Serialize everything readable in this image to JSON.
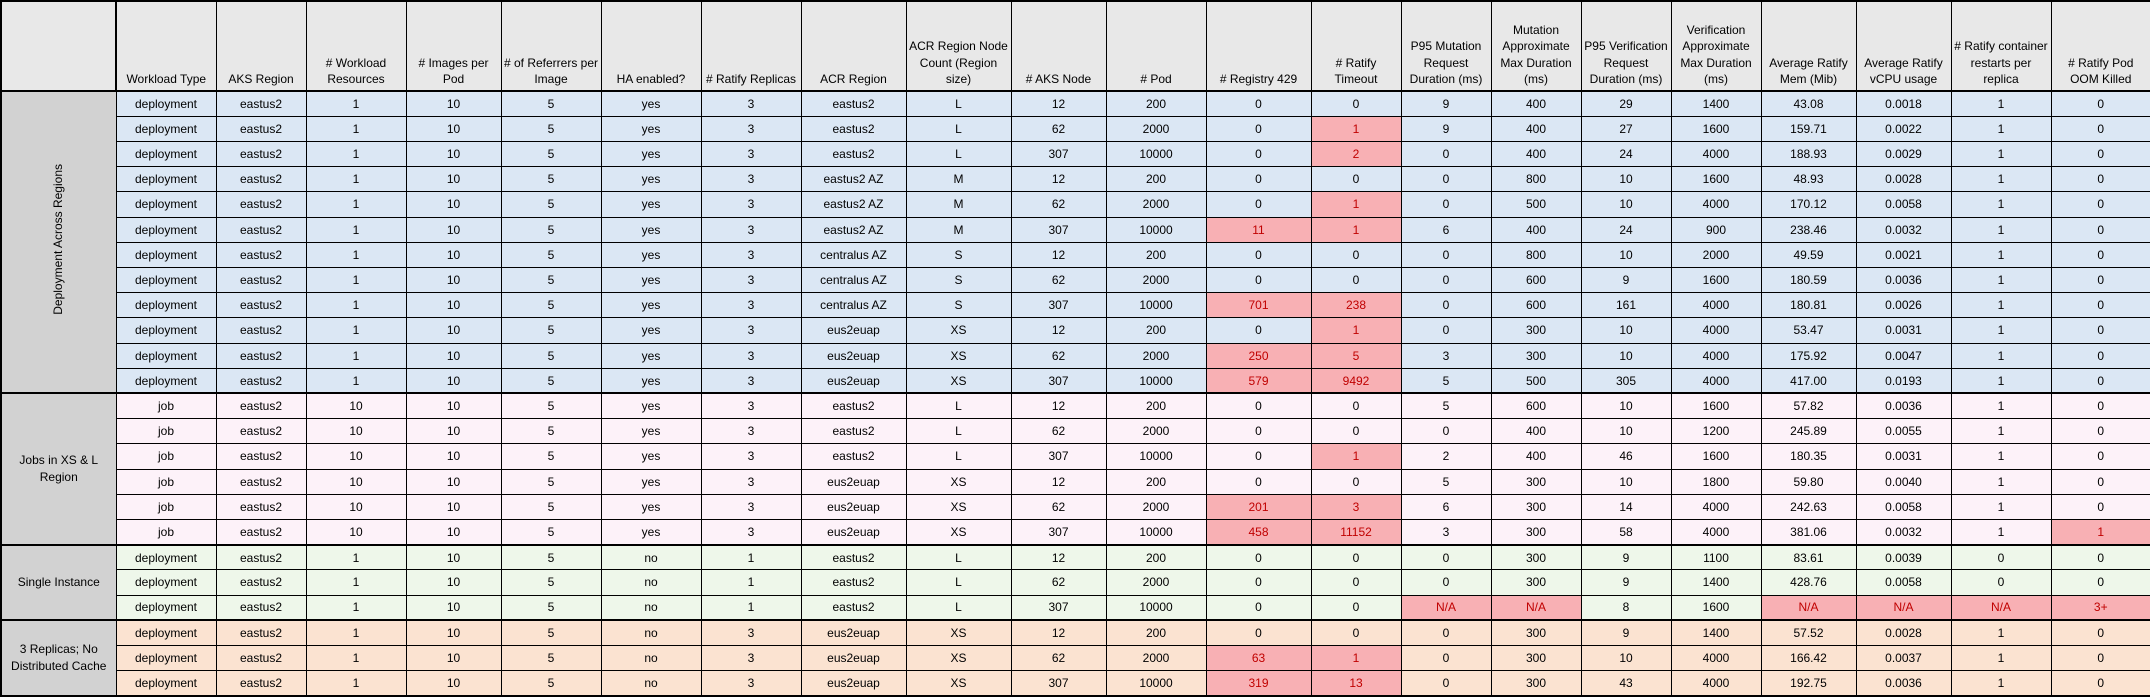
{
  "table": {
    "corner_label": "",
    "columns": [
      "Workload Type",
      "AKS Region",
      "# Workload Resources",
      "# Images per Pod",
      "# of Referrers per Image",
      "HA enabled?",
      "# Ratify Replicas",
      "ACR Region",
      "ACR Region Node Count (Region size)",
      "# AKS Node",
      "# Pod",
      "# Registry 429",
      "# Ratify Timeout",
      "P95 Mutation Request Duration (ms)",
      "Mutation Approximate Max Duration (ms)",
      "P95 Verification Request Duration (ms)",
      "Verification Approximate Max Duration (ms)",
      "Average Ratify Mem (Mib)",
      "Average Ratify vCPU usage",
      "# Ratify container restarts per replica",
      "# Ratify Pod OOM Killed"
    ],
    "colors": {
      "header_bg": "#e8e8e8",
      "group_label_bg": "#d2d2d2",
      "bad_cell_bg": "#f8b0b4",
      "bad_cell_text": "#c00000",
      "border": "#000000"
    },
    "groups": [
      {
        "label": "Deployment Across Regions",
        "label_rotated": true,
        "row_bg": "#dbe7f4",
        "rows": [
          [
            "deployment",
            "eastus2",
            "1",
            "10",
            "5",
            "yes",
            "3",
            "eastus2",
            "L",
            "12",
            "200",
            "0",
            "0",
            "9",
            "400",
            "29",
            "1400",
            "43.08",
            "0.0018",
            "1",
            "0"
          ],
          [
            "deployment",
            "eastus2",
            "1",
            "10",
            "5",
            "yes",
            "3",
            "eastus2",
            "L",
            "62",
            "2000",
            "0",
            "1",
            "9",
            "400",
            "27",
            "1600",
            "159.71",
            "0.0022",
            "1",
            "0"
          ],
          [
            "deployment",
            "eastus2",
            "1",
            "10",
            "5",
            "yes",
            "3",
            "eastus2",
            "L",
            "307",
            "10000",
            "0",
            "2",
            "0",
            "400",
            "24",
            "4000",
            "188.93",
            "0.0029",
            "1",
            "0"
          ],
          [
            "deployment",
            "eastus2",
            "1",
            "10",
            "5",
            "yes",
            "3",
            "eastus2 AZ",
            "M",
            "12",
            "200",
            "0",
            "0",
            "0",
            "800",
            "10",
            "1600",
            "48.93",
            "0.0028",
            "1",
            "0"
          ],
          [
            "deployment",
            "eastus2",
            "1",
            "10",
            "5",
            "yes",
            "3",
            "eastus2 AZ",
            "M",
            "62",
            "2000",
            "0",
            "1",
            "0",
            "500",
            "10",
            "4000",
            "170.12",
            "0.0058",
            "1",
            "0"
          ],
          [
            "deployment",
            "eastus2",
            "1",
            "10",
            "5",
            "yes",
            "3",
            "eastus2 AZ",
            "M",
            "307",
            "10000",
            "11",
            "1",
            "6",
            "400",
            "24",
            "900",
            "238.46",
            "0.0032",
            "1",
            "0"
          ],
          [
            "deployment",
            "eastus2",
            "1",
            "10",
            "5",
            "yes",
            "3",
            "centralus AZ",
            "S",
            "12",
            "200",
            "0",
            "0",
            "0",
            "800",
            "10",
            "2000",
            "49.59",
            "0.0021",
            "1",
            "0"
          ],
          [
            "deployment",
            "eastus2",
            "1",
            "10",
            "5",
            "yes",
            "3",
            "centralus AZ",
            "S",
            "62",
            "2000",
            "0",
            "0",
            "0",
            "600",
            "9",
            "1600",
            "180.59",
            "0.0036",
            "1",
            "0"
          ],
          [
            "deployment",
            "eastus2",
            "1",
            "10",
            "5",
            "yes",
            "3",
            "centralus AZ",
            "S",
            "307",
            "10000",
            "701",
            "238",
            "0",
            "600",
            "161",
            "4000",
            "180.81",
            "0.0026",
            "1",
            "0"
          ],
          [
            "deployment",
            "eastus2",
            "1",
            "10",
            "5",
            "yes",
            "3",
            "eus2euap",
            "XS",
            "12",
            "200",
            "0",
            "1",
            "0",
            "300",
            "10",
            "4000",
            "53.47",
            "0.0031",
            "1",
            "0"
          ],
          [
            "deployment",
            "eastus2",
            "1",
            "10",
            "5",
            "yes",
            "3",
            "eus2euap",
            "XS",
            "62",
            "2000",
            "250",
            "5",
            "3",
            "300",
            "10",
            "4000",
            "175.92",
            "0.0047",
            "1",
            "0"
          ],
          [
            "deployment",
            "eastus2",
            "1",
            "10",
            "5",
            "yes",
            "3",
            "eus2euap",
            "XS",
            "307",
            "10000",
            "579",
            "9492",
            "5",
            "500",
            "305",
            "4000",
            "417.00",
            "0.0193",
            "1",
            "0"
          ]
        ],
        "bad_cells": [
          [
            1,
            12
          ],
          [
            2,
            12
          ],
          [
            4,
            12
          ],
          [
            5,
            11
          ],
          [
            5,
            12
          ],
          [
            8,
            11
          ],
          [
            8,
            12
          ],
          [
            9,
            12
          ],
          [
            10,
            11
          ],
          [
            10,
            12
          ],
          [
            11,
            11
          ],
          [
            11,
            12
          ]
        ]
      },
      {
        "label": "Jobs in XS & L Region",
        "label_rotated": false,
        "row_bg": "#fdf2f9",
        "rows": [
          [
            "job",
            "eastus2",
            "10",
            "10",
            "5",
            "yes",
            "3",
            "eastus2",
            "L",
            "12",
            "200",
            "0",
            "0",
            "5",
            "600",
            "10",
            "1600",
            "57.82",
            "0.0036",
            "1",
            "0"
          ],
          [
            "job",
            "eastus2",
            "10",
            "10",
            "5",
            "yes",
            "3",
            "eastus2",
            "L",
            "62",
            "2000",
            "0",
            "0",
            "0",
            "400",
            "10",
            "1200",
            "245.89",
            "0.0055",
            "1",
            "0"
          ],
          [
            "job",
            "eastus2",
            "10",
            "10",
            "5",
            "yes",
            "3",
            "eastus2",
            "L",
            "307",
            "10000",
            "0",
            "1",
            "2",
            "400",
            "46",
            "1600",
            "180.35",
            "0.0031",
            "1",
            "0"
          ],
          [
            "job",
            "eastus2",
            "10",
            "10",
            "5",
            "yes",
            "3",
            "eus2euap",
            "XS",
            "12",
            "200",
            "0",
            "0",
            "5",
            "300",
            "10",
            "1800",
            "59.80",
            "0.0040",
            "1",
            "0"
          ],
          [
            "job",
            "eastus2",
            "10",
            "10",
            "5",
            "yes",
            "3",
            "eus2euap",
            "XS",
            "62",
            "2000",
            "201",
            "3",
            "6",
            "300",
            "14",
            "4000",
            "242.63",
            "0.0058",
            "1",
            "0"
          ],
          [
            "job",
            "eastus2",
            "10",
            "10",
            "5",
            "yes",
            "3",
            "eus2euap",
            "XS",
            "307",
            "10000",
            "458",
            "11152",
            "3",
            "300",
            "58",
            "4000",
            "381.06",
            "0.0032",
            "1",
            "1"
          ]
        ],
        "bad_cells": [
          [
            2,
            12
          ],
          [
            4,
            11
          ],
          [
            4,
            12
          ],
          [
            5,
            11
          ],
          [
            5,
            12
          ],
          [
            5,
            20
          ]
        ]
      },
      {
        "label": "Single Instance",
        "label_rotated": false,
        "row_bg": "#eef7ea",
        "rows": [
          [
            "deployment",
            "eastus2",
            "1",
            "10",
            "5",
            "no",
            "1",
            "eastus2",
            "L",
            "12",
            "200",
            "0",
            "0",
            "0",
            "300",
            "9",
            "1100",
            "83.61",
            "0.0039",
            "0",
            "0"
          ],
          [
            "deployment",
            "eastus2",
            "1",
            "10",
            "5",
            "no",
            "1",
            "eastus2",
            "L",
            "62",
            "2000",
            "0",
            "0",
            "0",
            "300",
            "9",
            "1400",
            "428.76",
            "0.0058",
            "0",
            "0"
          ],
          [
            "deployment",
            "eastus2",
            "1",
            "10",
            "5",
            "no",
            "1",
            "eastus2",
            "L",
            "307",
            "10000",
            "0",
            "0",
            "N/A",
            "N/A",
            "8",
            "1600",
            "N/A",
            "N/A",
            "N/A",
            "3+"
          ]
        ],
        "bad_cells": [
          [
            2,
            13
          ],
          [
            2,
            14
          ],
          [
            2,
            17
          ],
          [
            2,
            18
          ],
          [
            2,
            19
          ],
          [
            2,
            20
          ]
        ]
      },
      {
        "label": "3 Replicas; No Distributed Cache",
        "label_rotated": false,
        "row_bg": "#fbe3d1",
        "rows": [
          [
            "deployment",
            "eastus2",
            "1",
            "10",
            "5",
            "no",
            "3",
            "eus2euap",
            "XS",
            "12",
            "200",
            "0",
            "0",
            "0",
            "300",
            "9",
            "1400",
            "57.52",
            "0.0028",
            "1",
            "0"
          ],
          [
            "deployment",
            "eastus2",
            "1",
            "10",
            "5",
            "no",
            "3",
            "eus2euap",
            "XS",
            "62",
            "2000",
            "63",
            "1",
            "0",
            "300",
            "10",
            "4000",
            "166.42",
            "0.0037",
            "1",
            "0"
          ],
          [
            "deployment",
            "eastus2",
            "1",
            "10",
            "5",
            "no",
            "3",
            "eus2euap",
            "XS",
            "307",
            "10000",
            "319",
            "13",
            "0",
            "300",
            "43",
            "4000",
            "192.75",
            "0.0036",
            "1",
            "0"
          ]
        ],
        "bad_cells": [
          [
            1,
            11
          ],
          [
            1,
            12
          ],
          [
            2,
            11
          ],
          [
            2,
            12
          ]
        ]
      }
    ]
  }
}
